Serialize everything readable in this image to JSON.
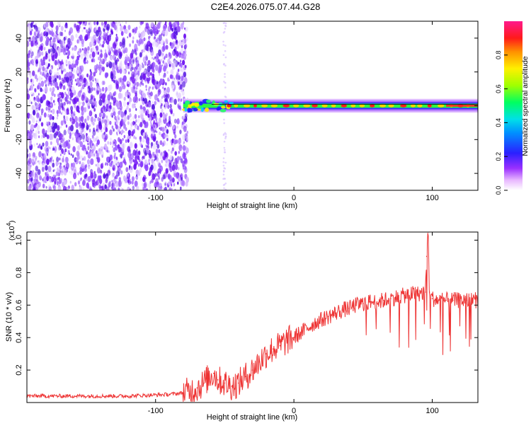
{
  "title": "C2E4.2026.075.07.44.G28",
  "chart_data": [
    {
      "type": "heatmap",
      "title": "C2E4.2026.075.07.44.G28",
      "xlabel": "Height of straight line (km)",
      "ylabel": "Frequency (Hz)",
      "xlim": [
        -193,
        133
      ],
      "ylim": [
        -50,
        50
      ],
      "x_ticks": [
        -100,
        0,
        100
      ],
      "x_tick_labels": [
        "-100",
        "0",
        "100"
      ],
      "y_ticks": [
        -40,
        -20,
        0,
        20,
        40
      ],
      "y_tick_labels": [
        "-40",
        "-20",
        "0",
        "20",
        "40"
      ],
      "colorbar": {
        "label": "Normalized spectral amplitude",
        "range": [
          0,
          1
        ],
        "ticks": [
          0.0,
          0.2,
          0.4,
          0.6,
          0.8
        ],
        "tick_labels": [
          "0.0",
          "0.2",
          "0.4",
          "0.6",
          "0.8"
        ],
        "colormap": "rainbow (violet-blue-cyan-green-yellow-red-magenta)"
      },
      "noise_region_x": [
        -193,
        -80
      ],
      "signal_band": {
        "x_range": [
          -80,
          133
        ],
        "frequency": 0,
        "peak_amplitude": 0.95
      }
    },
    {
      "type": "line",
      "xlabel": "Height of straight line (km)",
      "ylabel": "SNR (10 * v/v)",
      "y_multiplier": "(x10",
      "y_multiplier_exp": "4",
      "y_multiplier_close": ")",
      "xlim": [
        -193,
        133
      ],
      "ylim": [
        0,
        1.05
      ],
      "x_ticks": [
        -100,
        0,
        100
      ],
      "x_tick_labels": [
        "-100",
        "0",
        "100"
      ],
      "y_ticks": [
        0.2,
        0.4,
        0.6,
        0.8,
        1.0
      ],
      "y_tick_labels": [
        "0.2",
        "0.4",
        "0.6",
        "0.8",
        "1.0"
      ],
      "series": [
        {
          "name": "SNR",
          "color": "#ee3333",
          "x": [
            -193,
            -160,
            -120,
            -90,
            -80,
            -75,
            -70,
            -65,
            -62,
            -58,
            -55,
            -50,
            -45,
            -40,
            -35,
            -30,
            -25,
            -20,
            -15,
            -10,
            -5,
            0,
            5,
            10,
            15,
            20,
            25,
            30,
            35,
            40,
            45,
            50,
            55,
            60,
            65,
            70,
            75,
            80,
            85,
            90,
            95,
            96,
            97,
            98,
            100,
            105,
            110,
            115,
            120,
            125,
            133
          ],
          "values": [
            0.04,
            0.04,
            0.04,
            0.05,
            0.06,
            0.07,
            0.09,
            0.12,
            0.15,
            0.18,
            0.14,
            0.12,
            0.1,
            0.12,
            0.16,
            0.2,
            0.25,
            0.3,
            0.33,
            0.35,
            0.38,
            0.4,
            0.43,
            0.46,
            0.49,
            0.51,
            0.53,
            0.55,
            0.57,
            0.58,
            0.6,
            0.61,
            0.62,
            0.62,
            0.63,
            0.64,
            0.65,
            0.66,
            0.67,
            0.67,
            0.68,
            0.9,
            1.05,
            0.68,
            0.64,
            0.63,
            0.63,
            0.63,
            0.63,
            0.63,
            0.63
          ]
        }
      ]
    }
  ]
}
